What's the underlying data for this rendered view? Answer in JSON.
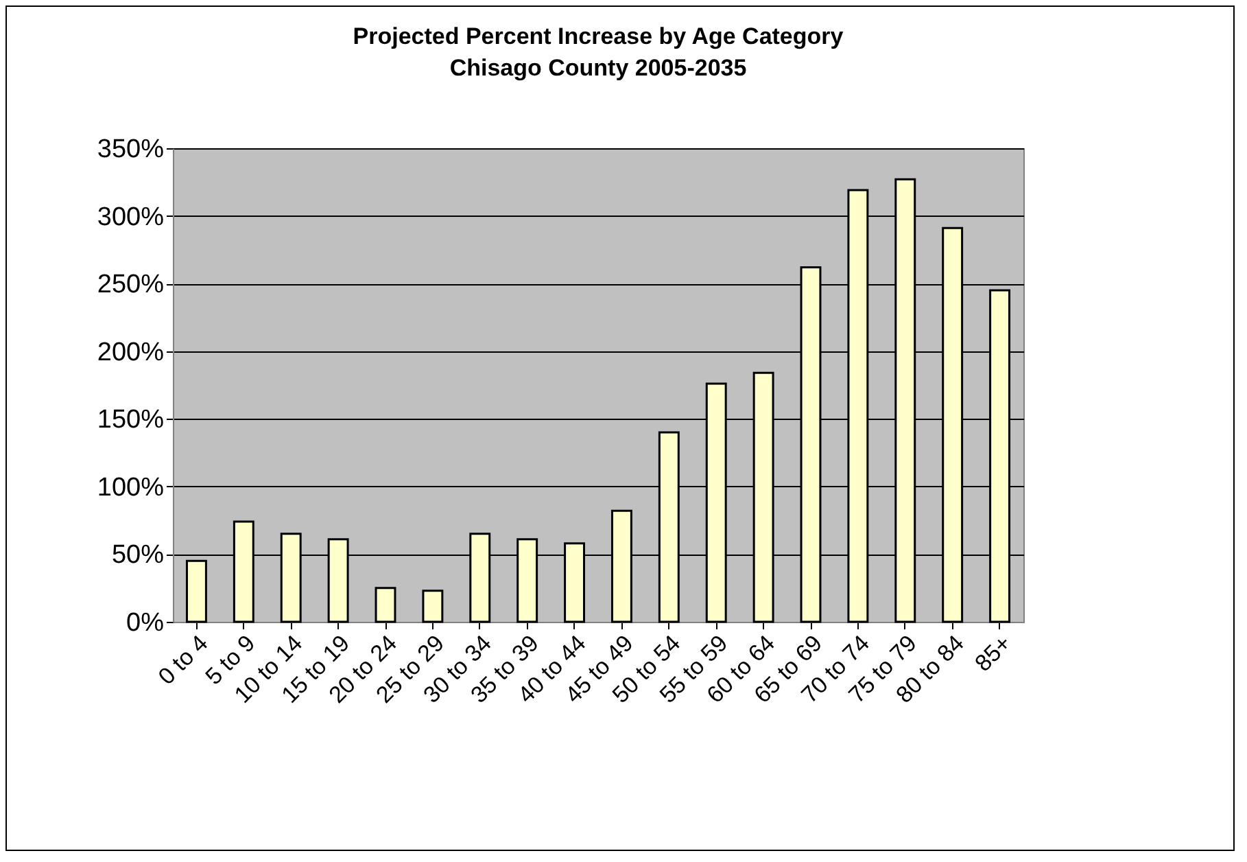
{
  "chart_data": {
    "type": "bar",
    "title": "Projected Percent Increase by Age Category",
    "subtitle": "Chisago County 2005-2035",
    "categories": [
      "0 to 4",
      "5 to 9",
      "10 to 14",
      "15 to 19",
      "20 to 24",
      "25 to 29",
      "30 to 34",
      "35 to 39",
      "40 to 44",
      "45 to 49",
      "50 to 54",
      "55 to 59",
      "60 to 64",
      "65 to 69",
      "70 to 74",
      "75 to 79",
      "80 to 84",
      "85+"
    ],
    "values": [
      45,
      74,
      65,
      61,
      25,
      23,
      65,
      61,
      58,
      82,
      140,
      176,
      184,
      262,
      319,
      327,
      291,
      245
    ],
    "color": "#ffffcc",
    "ylim": [
      0,
      350
    ],
    "yticks": [
      {
        "value": 0,
        "label": "0%"
      },
      {
        "value": 50,
        "label": "50%"
      },
      {
        "value": 100,
        "label": "100%"
      },
      {
        "value": 150,
        "label": "150%"
      },
      {
        "value": 200,
        "label": "200%"
      },
      {
        "value": 250,
        "label": "250%"
      },
      {
        "value": 300,
        "label": "300%"
      },
      {
        "value": 350,
        "label": "350%"
      }
    ],
    "grid": "y",
    "legend": false
  }
}
